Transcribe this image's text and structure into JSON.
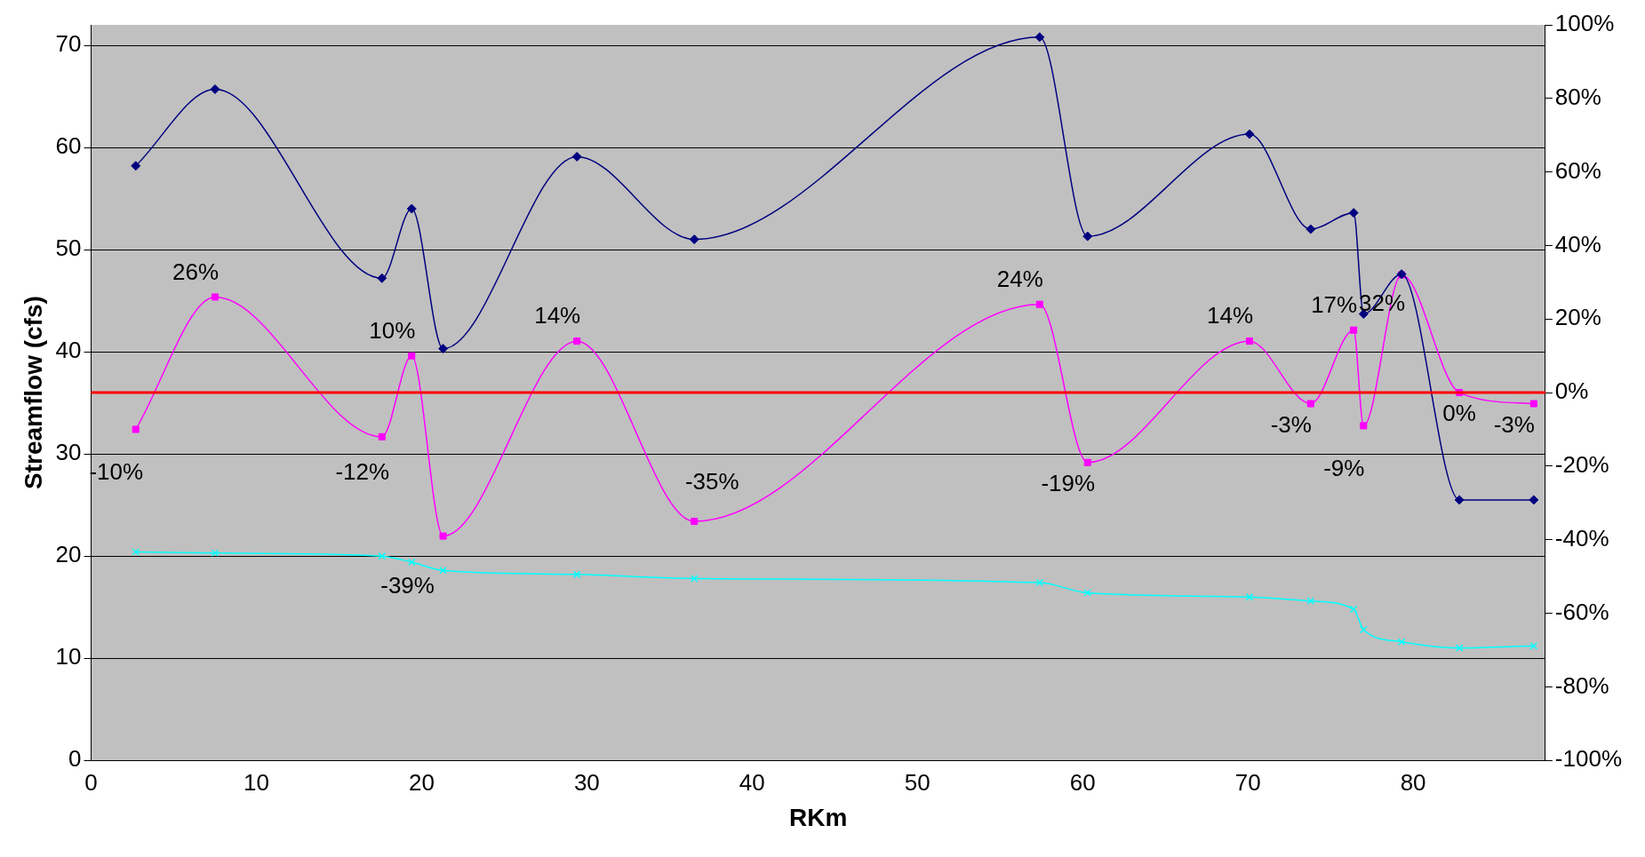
{
  "chart_data": {
    "type": "line",
    "xlabel": "RKm",
    "ylabel": "Streamflow (cfs)",
    "x": [
      2.7,
      7.5,
      17.6,
      19.4,
      21.3,
      29.4,
      36.5,
      57.4,
      60.3,
      70.1,
      73.8,
      76.4,
      77.0,
      79.3,
      82.8,
      87.3
    ],
    "xlim": [
      0,
      88
    ],
    "xticks": [
      0,
      10,
      20,
      30,
      40,
      50,
      60,
      70,
      80
    ],
    "ylim": [
      0,
      72
    ],
    "yticks": [
      0,
      10,
      20,
      30,
      40,
      50,
      60,
      70
    ],
    "y2lim": [
      -100,
      100
    ],
    "y2ticks": [
      {
        "value": -100,
        "label": "-100%"
      },
      {
        "value": -80,
        "label": "-80%"
      },
      {
        "value": -60,
        "label": "-60%"
      },
      {
        "value": -40,
        "label": "-40%"
      },
      {
        "value": -20,
        "label": "-20%"
      },
      {
        "value": 0,
        "label": "0%"
      },
      {
        "value": 20,
        "label": "20%"
      },
      {
        "value": 40,
        "label": "40%"
      },
      {
        "value": 60,
        "label": "60%"
      },
      {
        "value": 80,
        "label": "80%"
      },
      {
        "value": 100,
        "label": "100%"
      }
    ],
    "grid": "y",
    "legend": false,
    "series": [
      {
        "color": "#000080",
        "marker": "diamond",
        "values": [
          58.2,
          65.7,
          47.2,
          54.0,
          40.3,
          59.1,
          51.0,
          70.8,
          51.3,
          61.3,
          52.0,
          53.6,
          43.7,
          47.6,
          25.5,
          25.5
        ]
      },
      {
        "color": "#ff00ff",
        "marker": "square",
        "axis": "y2",
        "values": [
          -10,
          26,
          -12,
          10,
          -39,
          14,
          -35,
          24,
          -19,
          14,
          -3,
          17,
          -9,
          32,
          0,
          -3
        ],
        "value_labels": [
          "-10%",
          "26%",
          "-12%",
          "10%",
          "-39%",
          "14%",
          "-35%",
          "24%",
          "-19%",
          "14%",
          "-3%",
          "17%",
          "-9%",
          "32%",
          "0%",
          "-3%"
        ]
      },
      {
        "color": "#00ffff",
        "marker": "cross",
        "values": [
          20.4,
          20.3,
          20.0,
          19.4,
          18.6,
          18.2,
          17.8,
          17.4,
          16.4,
          16.0,
          15.6,
          14.8,
          12.8,
          11.6,
          11.0,
          11.2
        ]
      }
    ],
    "ref_lines": [
      {
        "axis": "y2",
        "value": 0,
        "color": "#ff0000"
      }
    ]
  }
}
